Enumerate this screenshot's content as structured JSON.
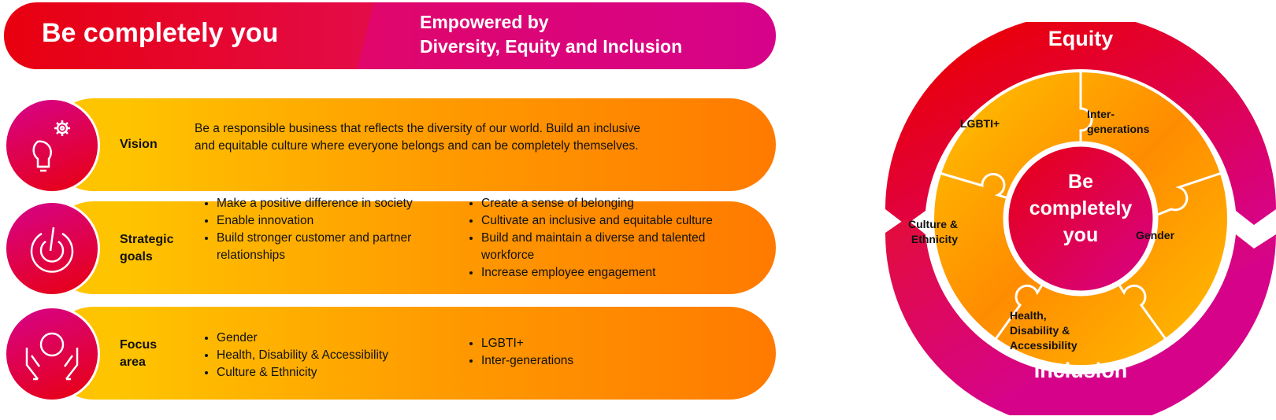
{
  "banner": {
    "title": "Be completely you",
    "subtitle_line1": "Empowered by",
    "subtitle_line2": "Diversity, Equity and Inclusion"
  },
  "rows": [
    {
      "icon": "lightbulb-gear-icon",
      "label": "Vision",
      "text": "Be a responsible business that reflects the diversity of our world. Build an inclusive and equitable culture where everyone belongs and can be completely themselves."
    },
    {
      "icon": "target-aim-icon",
      "label_line1": "Strategic",
      "label_line2": "goals",
      "col1": [
        "Make a positive difference in society",
        "Enable innovation",
        "Build stronger customer and partner relationships"
      ],
      "col2": [
        "Create a sense of belonging",
        "Cultivate an inclusive and equitable culture",
        "Build and maintain a diverse and talented workforce",
        "Increase employee engagement"
      ]
    },
    {
      "icon": "hands-holding-person-icon",
      "label_line1": "Focus",
      "label_line2": "area",
      "col1": [
        "Gender",
        "Health, Disability & Accessibility",
        "Culture & Ethnicity"
      ],
      "col2": [
        "LGBTI+",
        "Inter-generations"
      ]
    }
  ],
  "wheel": {
    "outer_top": "Equity",
    "outer_bottom": "Inclusion",
    "center_l1": "Be",
    "center_l2": "completely",
    "center_l3": "you",
    "pieces": {
      "lgbti": "LGBTI+",
      "inter1": "Inter-",
      "inter2": "generations",
      "gender": "Gender",
      "health1": "Health,",
      "health2": "Disability &",
      "health3": "Accessibility",
      "culture1": "Culture &",
      "culture2": "Ethnicity"
    }
  },
  "colors": {
    "red": "#e8000f",
    "magenta": "#d6038a",
    "yellow": "#ffc400",
    "orange": "#ff7a00"
  }
}
